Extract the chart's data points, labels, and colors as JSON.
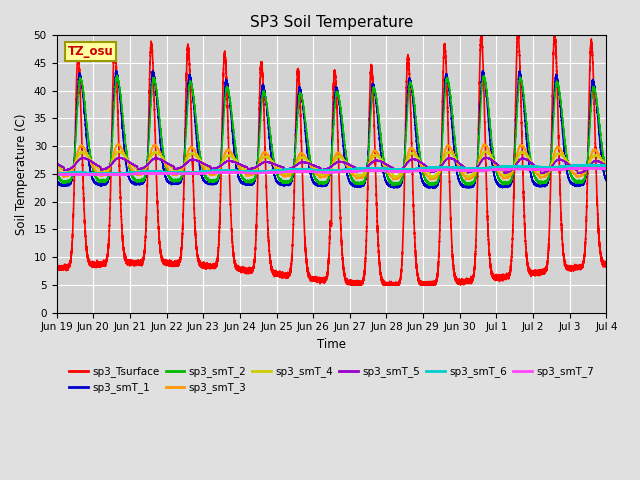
{
  "title": "SP3 Soil Temperature",
  "xlabel": "Time",
  "ylabel": "Soil Temperature (C)",
  "ylim": [
    0,
    50
  ],
  "yticks": [
    0,
    5,
    10,
    15,
    20,
    25,
    30,
    35,
    40,
    45,
    50
  ],
  "background_color": "#e0e0e0",
  "plot_bg_color": "#d3d3d3",
  "tz_label": "TZ_osu",
  "series": {
    "sp3_Tsurface": {
      "color": "#ff0000",
      "lw": 1.2
    },
    "sp3_smT_1": {
      "color": "#0000cc",
      "lw": 1.0
    },
    "sp3_smT_2": {
      "color": "#00bb00",
      "lw": 1.0
    },
    "sp3_smT_3": {
      "color": "#ff9900",
      "lw": 1.0
    },
    "sp3_smT_4": {
      "color": "#cccc00",
      "lw": 1.0
    },
    "sp3_smT_5": {
      "color": "#9900cc",
      "lw": 1.0
    },
    "sp3_smT_6": {
      "color": "#00cccc",
      "lw": 1.5
    },
    "sp3_smT_7": {
      "color": "#ff44ff",
      "lw": 1.5
    }
  },
  "x_tick_labels": [
    "Jun 19",
    "Jun 20",
    "Jun 21",
    "Jun 22",
    "Jun 23",
    "Jun 24",
    "Jun 25",
    "Jun 26",
    "Jun 27",
    "Jun 28",
    "Jun 29",
    "Jun 30",
    "Jul 1",
    "Jul 2",
    "Jul 3",
    "Jul 4"
  ],
  "num_days": 16
}
